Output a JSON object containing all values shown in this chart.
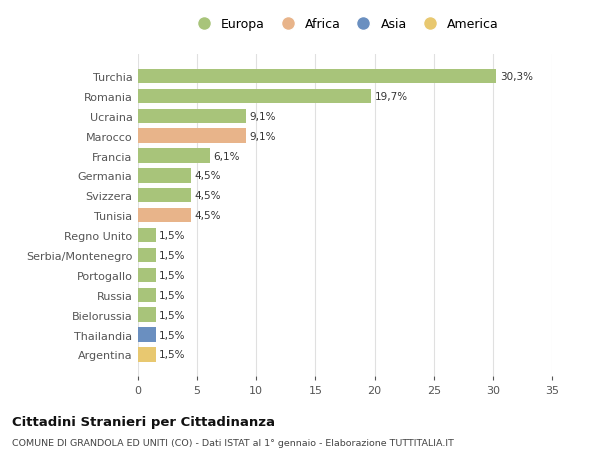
{
  "countries": [
    "Turchia",
    "Romania",
    "Ucraina",
    "Marocco",
    "Francia",
    "Germania",
    "Svizzera",
    "Tunisia",
    "Regno Unito",
    "Serbia/Montenegro",
    "Portogallo",
    "Russia",
    "Bielorussia",
    "Thailandia",
    "Argentina"
  ],
  "values": [
    30.3,
    19.7,
    9.1,
    9.1,
    6.1,
    4.5,
    4.5,
    4.5,
    1.5,
    1.5,
    1.5,
    1.5,
    1.5,
    1.5,
    1.5
  ],
  "labels": [
    "30,3%",
    "19,7%",
    "9,1%",
    "9,1%",
    "6,1%",
    "4,5%",
    "4,5%",
    "4,5%",
    "1,5%",
    "1,5%",
    "1,5%",
    "1,5%",
    "1,5%",
    "1,5%",
    "1,5%"
  ],
  "colors": [
    "#a8c47a",
    "#a8c47a",
    "#a8c47a",
    "#e8b48a",
    "#a8c47a",
    "#a8c47a",
    "#a8c47a",
    "#e8b48a",
    "#a8c47a",
    "#a8c47a",
    "#a8c47a",
    "#a8c47a",
    "#a8c47a",
    "#6a8fc0",
    "#e8c870"
  ],
  "legend_labels": [
    "Europa",
    "Africa",
    "Asia",
    "America"
  ],
  "legend_colors": [
    "#a8c47a",
    "#e8b48a",
    "#6a8fc0",
    "#e8c870"
  ],
  "title": "Cittadini Stranieri per Cittadinanza",
  "subtitle": "COMUNE DI GRANDOLA ED UNITI (CO) - Dati ISTAT al 1° gennaio - Elaborazione TUTTITALIA.IT",
  "xlim": [
    0,
    35
  ],
  "xticks": [
    0,
    5,
    10,
    15,
    20,
    25,
    30,
    35
  ],
  "bg_color": "#ffffff",
  "grid_color": "#e0e0e0",
  "bar_height": 0.72
}
